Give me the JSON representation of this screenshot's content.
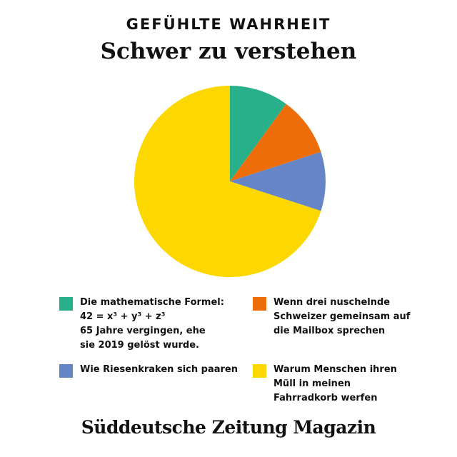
{
  "header": {
    "kicker": "GEFÜHLTE WAHRHEIT",
    "title": "Schwer zu verstehen"
  },
  "chart_data": {
    "type": "pie",
    "title": "Schwer zu verstehen",
    "series": [
      {
        "name": "Die mathematische Formel: 42 = x³ + y³ + z³ 65 Jahre vergingen, ehe sie 2019 gelöst wurde.",
        "value": 10,
        "color": "#27b089"
      },
      {
        "name": "Wenn drei nuschelnde Schweizer gemeinsam auf die Mailbox sprechen",
        "value": 10,
        "color": "#ec6d0a"
      },
      {
        "name": "Wie Riesenkraken sich paaren",
        "value": 10,
        "color": "#6585c6"
      },
      {
        "name": "Warum Menschen ihren Müll in meinen Fahrradkorb werfen",
        "value": 70,
        "color": "#fdd800"
      }
    ]
  },
  "legend": {
    "formula": {
      "line1": "Die mathematische Formel:",
      "line2": "42 = x³ + y³ + z³",
      "line3": "65 Jahre vergingen, ehe",
      "line4": "sie 2019 gelöst wurde.",
      "color": "#27b089"
    },
    "swiss": {
      "line1": "Wenn drei nuschelnde",
      "line2": "Schweizer gemeinsam auf",
      "line3": "die Mailbox sprechen",
      "color": "#ec6d0a"
    },
    "kraken": {
      "line1": "Wie Riesenkraken sich paaren",
      "color": "#6585c6"
    },
    "trash": {
      "line1": "Warum Menschen ihren",
      "line2": "Müll in meinen",
      "line3": "Fahrradkorb werfen",
      "color": "#fdd800"
    }
  },
  "footer": {
    "brand": "Süddeutsche Zeitung Magazin"
  }
}
